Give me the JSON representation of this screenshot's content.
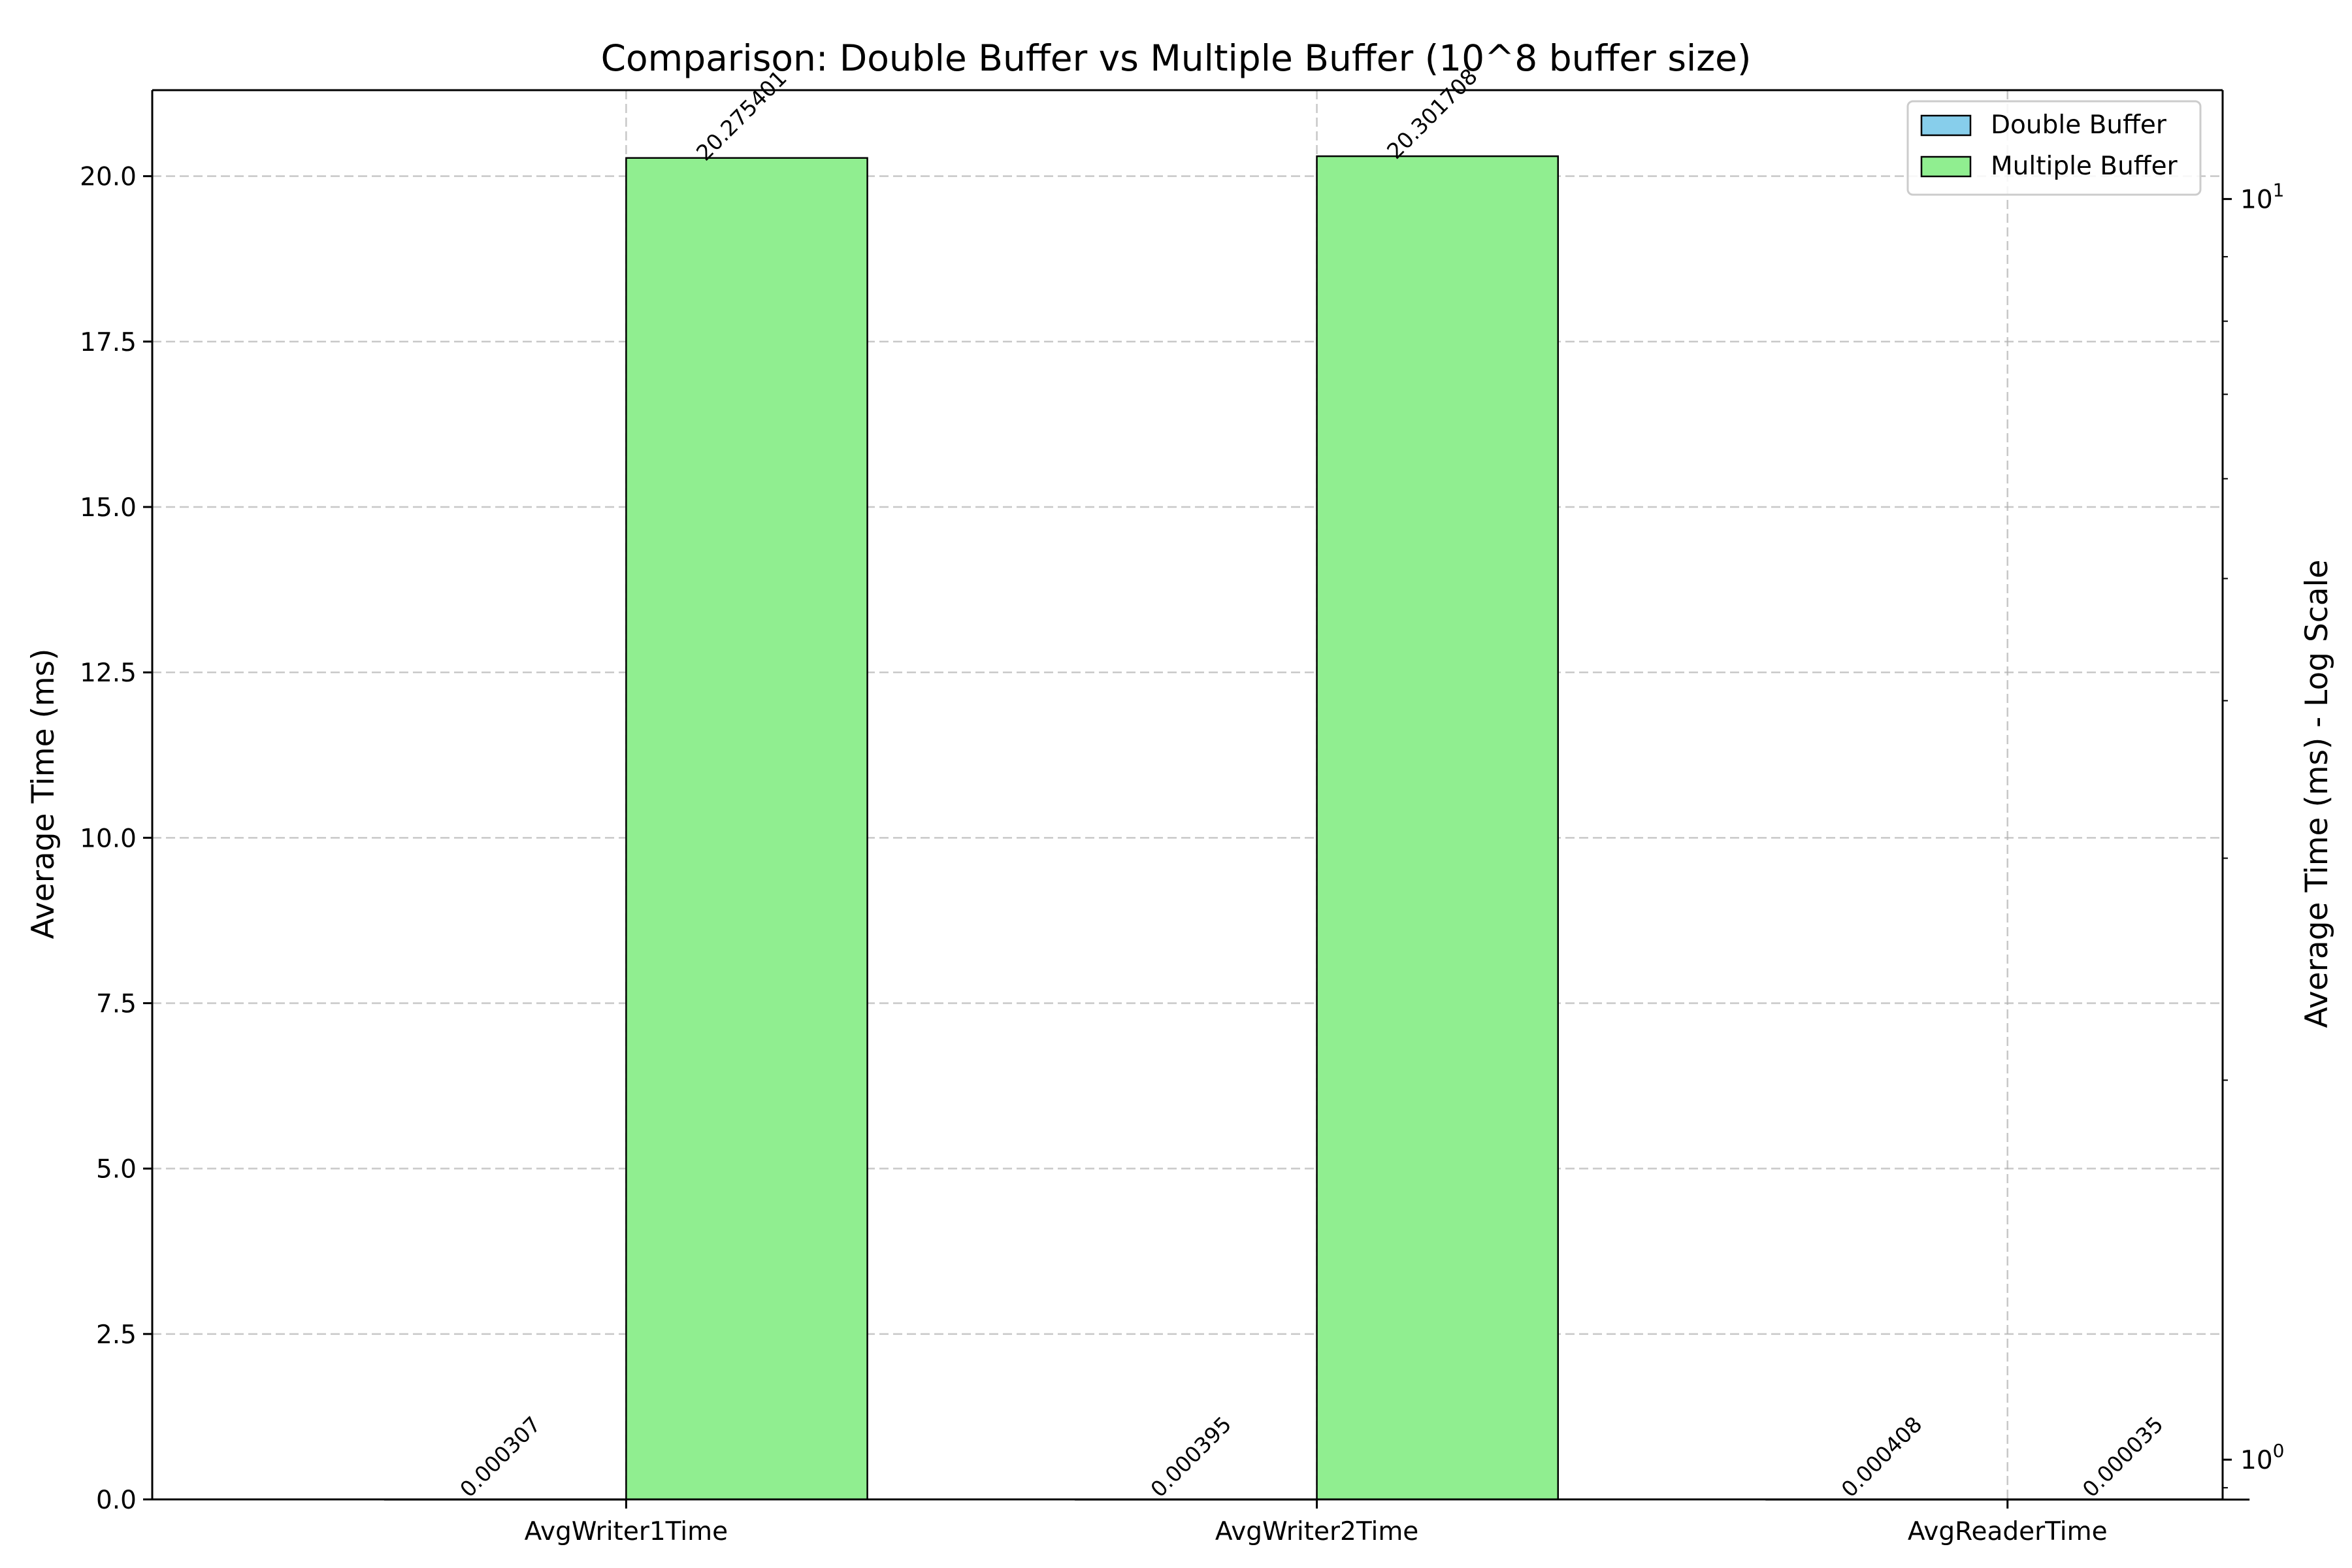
{
  "chart_data": {
    "type": "bar",
    "title": "Comparison: Double Buffer vs Multiple Buffer (10^8 buffer size)",
    "xlabel": "",
    "ylabel": "Average Time (ms)",
    "y2label": "Average Time (ms) - Log Scale",
    "categories": [
      "AvgWriter1Time",
      "AvgWriter2Time",
      "AvgReaderTime"
    ],
    "series": [
      {
        "name": "Double Buffer",
        "values": [
          0.000307,
          0.000395,
          0.000408
        ],
        "labels": [
          "0.000307",
          "0.000395",
          "0.000408"
        ],
        "color": "#87ceeb"
      },
      {
        "name": "Multiple Buffer",
        "values": [
          20.275401,
          20.301708,
          3.5e-05
        ],
        "labels": [
          "20.275401",
          "20.301708",
          "0.000035"
        ],
        "color": "#90ee90"
      }
    ],
    "ylim": [
      0,
      21.3
    ],
    "yticks": [
      0.0,
      2.5,
      5.0,
      7.5,
      10.0,
      12.5,
      15.0,
      17.5,
      20.0
    ],
    "ytick_labels": [
      "0.0",
      "2.5",
      "5.0",
      "7.5",
      "10.0",
      "12.5",
      "15.0",
      "17.5",
      "20.0"
    ],
    "y2_scale": "log",
    "y2lim": [
      0.93,
      12.2
    ],
    "y2_major_ticks": [
      1,
      10
    ],
    "y2_major_labels": [
      {
        "base": "10",
        "exp": "0"
      },
      {
        "base": "10",
        "exp": "1"
      }
    ],
    "grid": true,
    "legend": "top-right"
  }
}
